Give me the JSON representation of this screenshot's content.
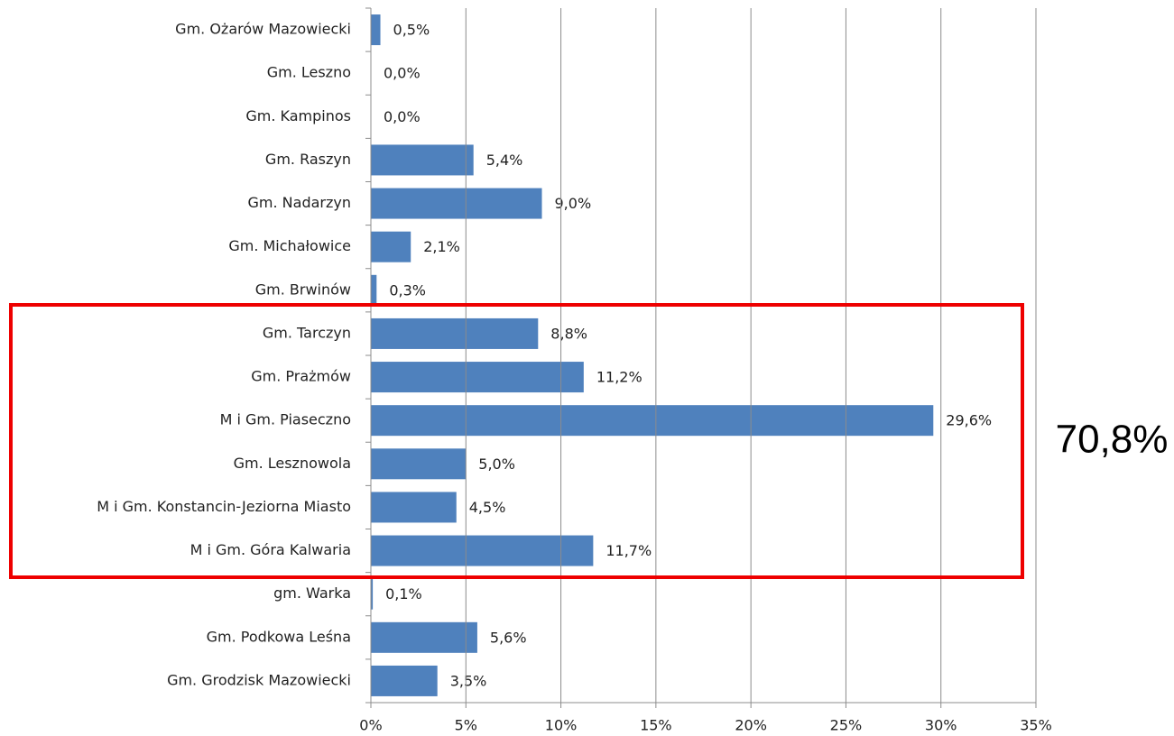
{
  "chart_data": {
    "type": "bar",
    "orientation": "horizontal",
    "categories": [
      "Gm. Ożarów Mazowiecki",
      "Gm. Leszno",
      "Gm. Kampinos",
      "Gm. Raszyn",
      "Gm. Nadarzyn",
      "Gm. Michałowice",
      "Gm. Brwinów",
      "Gm. Tarczyn",
      "Gm. Prażmów",
      "M i Gm. Piaseczno",
      "Gm. Lesznowola",
      "M i Gm. Konstancin-Jeziorna Miasto",
      "M i Gm. Góra Kalwaria",
      "gm. Warka",
      "Gm. Podkowa Leśna",
      "Gm. Grodzisk Mazowiecki"
    ],
    "values": [
      0.5,
      0.0,
      0.0,
      5.4,
      9.0,
      2.1,
      0.3,
      8.8,
      11.2,
      29.6,
      5.0,
      4.5,
      11.7,
      0.1,
      5.6,
      3.5
    ],
    "value_labels": [
      "0,5%",
      "0,0%",
      "0,0%",
      "5,4%",
      "9,0%",
      "2,1%",
      "0,3%",
      "8,8%",
      "11,2%",
      "29,6%",
      "5,0%",
      "4,5%",
      "11,7%",
      "0,1%",
      "5,6%",
      "3,5%"
    ],
    "color": "#4f81bd",
    "xlim": [
      0,
      35
    ],
    "xticks": [
      {
        "value": 0,
        "label": "0%"
      },
      {
        "value": 5,
        "label": "5%"
      },
      {
        "value": 10,
        "label": "10%"
      },
      {
        "value": 15,
        "label": "15%"
      },
      {
        "value": 20,
        "label": "20%"
      },
      {
        "value": 25,
        "label": "25%"
      },
      {
        "value": 30,
        "label": "30%"
      },
      {
        "value": 35,
        "label": "35%"
      }
    ],
    "grid": true,
    "annotation": "70,8%"
  }
}
